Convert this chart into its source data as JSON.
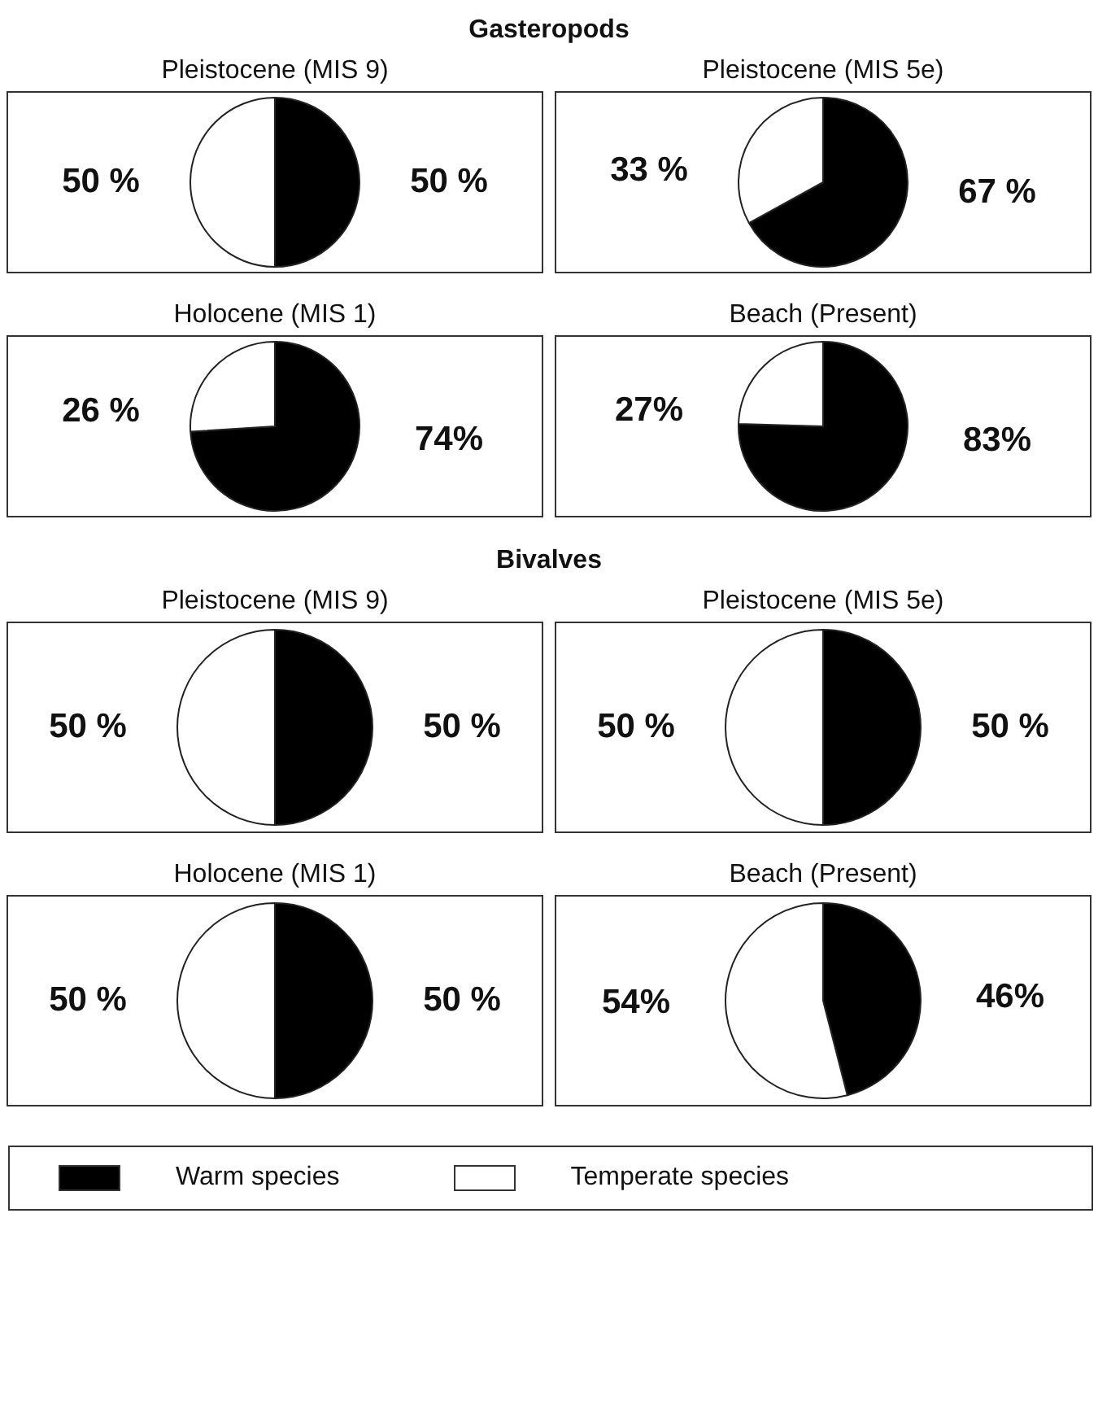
{
  "chart_data": [
    {
      "type": "other",
      "title": "Gasteropods"
    },
    {
      "type": "pie",
      "title": "Pleistocene (MIS 9)",
      "categories": [
        null,
        null
      ],
      "values": [
        50,
        50
      ],
      "colors": [
        "#000000",
        "#ffffff"
      ],
      "value_labels": [
        "50 %",
        "50 %"
      ]
    },
    {
      "type": "pie",
      "title": "Pleistocene (MIS 5e)",
      "categories": [
        null,
        null
      ],
      "values": [
        67,
        33
      ],
      "colors": [
        "#000000",
        "#ffffff"
      ],
      "value_labels": [
        "67 %",
        "33 %"
      ]
    },
    {
      "type": "pie",
      "title": "Holocene  (MIS 1)",
      "categories": [
        null,
        null
      ],
      "values": [
        74,
        26
      ],
      "colors": [
        "#000000",
        "#ffffff"
      ],
      "value_labels": [
        "74%",
        "26 %"
      ]
    },
    {
      "type": "pie",
      "title": "Beach (Present)",
      "categories": [
        null,
        null
      ],
      "values": [
        83,
        27
      ],
      "colors": [
        "#000000",
        "#ffffff"
      ],
      "value_labels": [
        "83%",
        "27%"
      ]
    },
    {
      "type": "other",
      "title": "Bivalves"
    },
    {
      "type": "pie",
      "title": "Pleistocene (MIS 9)",
      "categories": [
        null,
        null
      ],
      "values": [
        50,
        50
      ],
      "colors": [
        "#000000",
        "#ffffff"
      ],
      "value_labels": [
        "50 %",
        "50 %"
      ]
    },
    {
      "type": "pie",
      "title": "Pleistocene (MIS 5e)",
      "categories": [
        null,
        null
      ],
      "values": [
        50,
        50
      ],
      "colors": [
        "#000000",
        "#ffffff"
      ],
      "value_labels": [
        "50 %",
        "50 %"
      ]
    },
    {
      "type": "pie",
      "title": "Holocene  (MIS 1)",
      "categories": [
        null,
        null
      ],
      "values": [
        50,
        50
      ],
      "colors": [
        "#000000",
        "#ffffff"
      ],
      "value_labels": [
        "50 %",
        "50 %"
      ]
    },
    {
      "type": "pie",
      "title": "Beach (Present)",
      "categories": [
        "Warm species",
        "Temperate species"
      ],
      "values": [
        46,
        54
      ],
      "colors": [
        "#000000",
        "#ffffff"
      ],
      "value_labels": [
        "46%",
        "54%"
      ],
      "legend": "bottom"
    }
  ]
}
